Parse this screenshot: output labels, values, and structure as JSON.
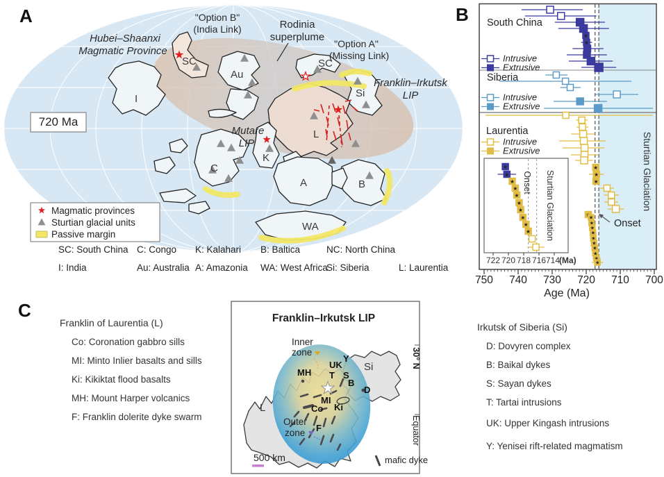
{
  "colors": {
    "south_china": "#3b3b9e",
    "siberia": "#5b9bc8",
    "laurentia": "#e2bd45",
    "glaciation_shade": "#d9eef6",
    "magmatic_red": "#e02020",
    "margin_yellow": "#f2e766",
    "glacial_gray": "#8f8f8f",
    "ocean_blue": "#d7e7f3",
    "lip_title_red": "#d42020",
    "inner_zone_gold": "#d9a91c",
    "outer_zone_purple": "#7568c8",
    "scalebar_plum": "#c77fd0"
  },
  "panel_a": {
    "label": "A",
    "time_label": "720 Ma",
    "annotations": {
      "hubei_1": "Hubei–Shaanxi",
      "hubei_2": "Magmatic Province",
      "option_b_1": "\"Option B\"",
      "option_b_2": "(India Link)",
      "rodinia_1": "Rodinia",
      "rodinia_2": "superplume",
      "option_a_1": "\"Option A\"",
      "option_a_2": "(Missing Link)",
      "franklin_1": "Franklin–Irkutsk",
      "franklin_2": "LIP",
      "mutare_1": "Mutare",
      "mutare_2": "LIP"
    },
    "cratons": {
      "india": "I",
      "south_china_b": "SC",
      "australia": "Au",
      "south_china_a": "SC",
      "siberia": "Si",
      "laurentia": "L",
      "kalahari": "K",
      "congo": "C",
      "amazonia": "A",
      "baltica": "B",
      "west_africa": "WA"
    },
    "legend": {
      "magmatic": "Magmatic provinces",
      "glacial": "Sturtian glacial units",
      "margin": "Passive margin"
    },
    "abbreviations": [
      "SC: South China",
      "C: Congo",
      "K: Kalahari",
      "B: Baltica",
      "NC: North China",
      "I: India",
      "Au: Australia",
      "A: Amazonia",
      "WA: West Africa",
      "Si: Siberia",
      "L: Laurentia"
    ]
  },
  "chart_data": {
    "type": "scatter",
    "panel_label": "B",
    "xlabel": "Age (Ma)",
    "x_range": [
      750,
      700
    ],
    "x_ticks": [
      750,
      740,
      730,
      720,
      710,
      700
    ],
    "dashed_lines_ma": [
      717.4,
      716.3
    ],
    "glaciation_band": {
      "from_ma": 716.3,
      "to_ma": 700,
      "label": "Sturtian Glaciation"
    },
    "onset_label": "Onset",
    "sections": [
      {
        "name": "South China",
        "color_key": "south_china",
        "legend": {
          "intrusive": "Intrusive",
          "extrusive": "Extrusive"
        },
        "points": [
          {
            "y": 14,
            "ma": 730.6,
            "lo": 739.0,
            "hi": 721.0,
            "style": "open",
            "s": 10
          },
          {
            "y": 23,
            "ma": 727.4,
            "lo": 738.0,
            "hi": 717.0,
            "style": "open",
            "s": 10
          },
          {
            "y": 32,
            "ma": 721.8,
            "lo": 729.2,
            "hi": 714.5,
            "style": "filled",
            "s": 11
          },
          {
            "y": 41,
            "ma": 720.8,
            "lo": 728.2,
            "hi": 713.3,
            "style": "filled",
            "s": 11
          },
          {
            "y": 51,
            "ma": 720.1,
            "lo": 720.9,
            "hi": 719.3,
            "style": "star",
            "s": 9
          },
          {
            "y": 61,
            "ma": 719.9,
            "lo": 721.5,
            "hi": 718.3,
            "style": "star",
            "s": 9
          },
          {
            "y": 70,
            "ma": 719.7,
            "lo": 724.0,
            "hi": 714.9,
            "style": "filled",
            "s": 10
          },
          {
            "y": 79,
            "ma": 719.8,
            "lo": 725.7,
            "hi": 713.9,
            "style": "filled",
            "s": 10
          },
          {
            "y": 88,
            "ma": 718.6,
            "lo": 725.1,
            "hi": 712.2,
            "style": "filled",
            "s": 11
          },
          {
            "y": 97,
            "ma": 716.3,
            "lo": 721.4,
            "hi": 711.2,
            "style": "filled",
            "s": 12
          }
        ]
      },
      {
        "name": "Siberia",
        "color_key": "siberia",
        "legend": {
          "intrusive": "Intrusive",
          "extrusive": "Extrusive"
        },
        "points": [
          {
            "y": 108,
            "ma": 728.8,
            "lo": 732.0,
            "hi": 725.5,
            "style": "open",
            "s": 9
          },
          {
            "y": 117,
            "ma": 726.1,
            "lo": 745.5,
            "hi": 706.7,
            "style": "open",
            "s": 9
          },
          {
            "y": 126,
            "ma": 724.7,
            "lo": 727.6,
            "hi": 721.6,
            "style": "open",
            "s": 9
          },
          {
            "y": 136,
            "ma": 711.0,
            "lo": 717.3,
            "hi": 704.7,
            "style": "open",
            "s": 10
          },
          {
            "y": 146,
            "ma": 721.8,
            "lo": 729.6,
            "hi": 713.9,
            "style": "filled",
            "s": 10
          },
          {
            "y": 156,
            "ma": 716.5,
            "lo": 732.4,
            "hi": 700.4,
            "style": "filled",
            "s": 11
          }
        ]
      },
      {
        "name": "Laurentia",
        "color_key": "laurentia",
        "legend": {
          "intrusive": "Intrusive",
          "extrusive": "Extrusive"
        },
        "points": [
          {
            "y": 166,
            "ma": 726.0,
            "lo": 749.6,
            "hi": 700.4,
            "style": "open",
            "s": 9
          },
          {
            "y": 173,
            "ma": 721.3,
            "lo": 723.0,
            "hi": 719.6,
            "style": "open",
            "s": 9
          },
          {
            "y": 183,
            "ma": 721.1,
            "lo": 722.8,
            "hi": 719.4,
            "style": "open",
            "s": 9
          },
          {
            "y": 193,
            "ma": 720.9,
            "lo": 724.4,
            "hi": 717.4,
            "style": "open",
            "s": 10
          },
          {
            "y": 203,
            "ma": 720.7,
            "lo": 728.0,
            "hi": 714.2,
            "style": "open",
            "s": 10
          },
          {
            "y": 213,
            "ma": 720.5,
            "lo": 727.0,
            "hi": 714.6,
            "style": "open",
            "s": 10
          },
          {
            "y": 223,
            "ma": 720.5,
            "lo": 724.5,
            "hi": 716.5,
            "style": "open",
            "s": 10
          },
          {
            "y": 231,
            "ma": 720.6,
            "lo": 723.2,
            "hi": 718.0,
            "style": "open",
            "s": 10
          },
          {
            "y": 241,
            "ma": 717.2,
            "style": "star",
            "s": 9
          },
          {
            "y": 251,
            "ma": 717.0,
            "lo": 719.2,
            "hi": 714.8,
            "style": "star",
            "s": 9
          },
          {
            "y": 261,
            "ma": 717.1,
            "style": "star",
            "s": 9
          },
          {
            "y": 271,
            "ma": 713.9,
            "lo": 715.9,
            "hi": 711.9,
            "style": "open",
            "s": 9
          },
          {
            "y": 281,
            "ma": 712.6,
            "lo": 714.8,
            "hi": 710.4,
            "style": "open",
            "s": 9
          },
          {
            "y": 291,
            "ma": 712.6,
            "lo": 714.6,
            "hi": 710.6,
            "style": "open",
            "s": 9
          },
          {
            "y": 301,
            "ma": 711.3,
            "lo": 713.7,
            "hi": 708.9,
            "style": "open",
            "s": 10
          },
          {
            "y": 309,
            "ma": 719.4,
            "style": "star",
            "s": 9
          },
          {
            "y": 313,
            "ma": 718.6,
            "style": "star",
            "s": 8
          },
          {
            "y": 321,
            "ma": 718.4,
            "style": "star",
            "s": 8
          },
          {
            "y": 328,
            "ma": 718.2,
            "style": "star",
            "s": 8
          },
          {
            "y": 335,
            "ma": 718.0,
            "style": "star",
            "s": 8
          },
          {
            "y": 343,
            "ma": 717.9,
            "style": "star",
            "s": 8
          },
          {
            "y": 350,
            "ma": 717.7,
            "style": "star",
            "s": 8
          },
          {
            "y": 357,
            "ma": 717.5,
            "style": "star",
            "s": 8
          },
          {
            "y": 365,
            "ma": 717.3,
            "style": "star",
            "s": 8
          },
          {
            "y": 372,
            "ma": 717.0,
            "lo": 718.2,
            "hi": 715.8,
            "style": "star",
            "s": 8
          },
          {
            "y": 378,
            "ma": 716.7,
            "lo": 718.4,
            "hi": 715.0,
            "style": "star",
            "s": 8
          }
        ]
      }
    ],
    "inset": {
      "x_ticks": [
        722,
        720,
        718,
        716,
        714
      ],
      "unit_label": "(Ma)",
      "dashed_lines_ma": [
        717.4,
        716.3
      ],
      "onset_label": "Onset",
      "glaciation_label": "Sturtian Glaciation",
      "points": [
        {
          "y": 240,
          "ma": 720.4,
          "style": "star",
          "color_key": "south_china",
          "s": 9
        },
        {
          "y": 251,
          "ma": 720.2,
          "lo": 721.4,
          "hi": 719.0,
          "style": "star",
          "color_key": "south_china",
          "s": 9
        },
        {
          "y": 261,
          "ma": 719.5,
          "style": "star",
          "color_key": "laurentia",
          "s": 9
        },
        {
          "y": 271,
          "ma": 719.1,
          "style": "star",
          "color_key": "laurentia",
          "s": 9
        },
        {
          "y": 281,
          "ma": 718.9,
          "style": "star",
          "color_key": "laurentia",
          "s": 9
        },
        {
          "y": 292,
          "ma": 718.6,
          "style": "star",
          "color_key": "laurentia",
          "s": 9
        },
        {
          "y": 302,
          "ma": 718.4,
          "style": "star",
          "color_key": "laurentia",
          "s": 9
        },
        {
          "y": 313,
          "ma": 718.1,
          "style": "star",
          "color_key": "laurentia",
          "s": 9
        },
        {
          "y": 323,
          "ma": 717.7,
          "style": "star",
          "color_key": "laurentia",
          "s": 9
        },
        {
          "y": 333,
          "ma": 717.4,
          "style": "star",
          "color_key": "laurentia",
          "s": 9
        },
        {
          "y": 344,
          "ma": 716.9,
          "lo": 717.4,
          "hi": 716.4,
          "style": "open",
          "color_key": "laurentia",
          "s": 9
        },
        {
          "y": 356,
          "ma": 716.4,
          "lo": 717.5,
          "hi": 715.3,
          "style": "open",
          "color_key": "laurentia",
          "s": 9
        }
      ]
    }
  },
  "panel_c": {
    "label": "C",
    "left": {
      "title": "Franklin of Laurentia (L)",
      "items": [
        "Co: Coronation gabbro sills",
        "MI: Minto Inlier basalts and sills",
        "Ki: Kikiktat flood basalts",
        "MH: Mount Harper volcanics",
        "F: Franklin dolerite dyke swarm"
      ]
    },
    "right": {
      "title": "Irkutsk of Siberia (Si)",
      "items": [
        "D: Dovyren complex",
        "B: Baikal dykes",
        "S: Sayan dykes",
        "T: Tartai intrusions",
        "UK:  Upper Kingash intrusions",
        "Y:  Yenisei rift-related magmatism"
      ]
    },
    "map": {
      "title": "Franklin–Irkutsk LIP",
      "inner_zone_1": "Inner",
      "inner_zone_2": "zone",
      "outer_zone_1": "Outer",
      "outer_zone_2": "zone",
      "scale_label": "500 km",
      "dyke_legend": "mafic dyke",
      "lat_label": "30° N",
      "equator_label": "Equator",
      "labels": {
        "mh": "MH",
        "uk": "UK",
        "y": "Y",
        "t": "T",
        "s": "S",
        "b": "B",
        "d": "D",
        "si": "Si",
        "mi": "MI",
        "co": "Co",
        "ki": "Ki",
        "f": "F",
        "l": "L"
      }
    }
  }
}
